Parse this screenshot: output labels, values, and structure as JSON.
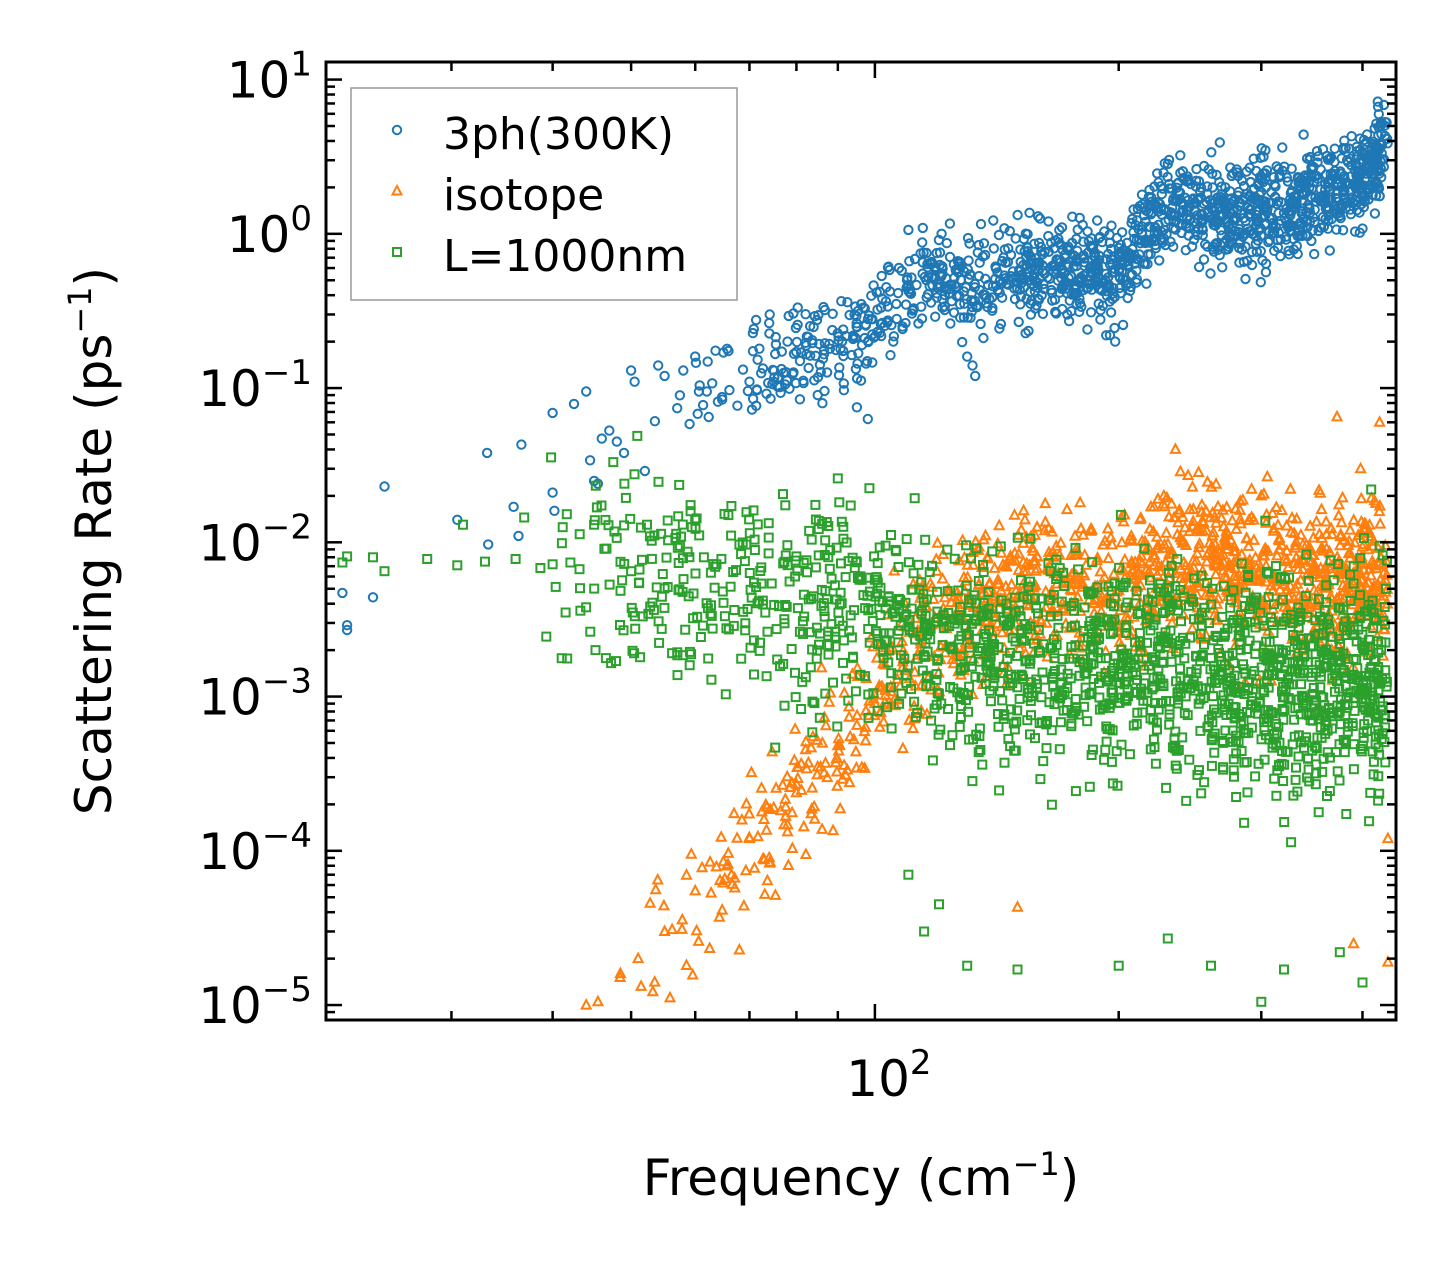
{
  "chart_data": {
    "type": "scatter",
    "title": "",
    "xlabel": "Frequency (cm",
    "xlabel_sup": "−1",
    "xlabel_end": ")",
    "ylabel": "Scattering Rate (ps",
    "ylabel_sup": "−1",
    "ylabel_end": ")",
    "xscale": "log",
    "yscale": "log",
    "xlim": [
      21,
      440
    ],
    "ylim": [
      8e-06,
      13
    ],
    "x_ticks": [
      {
        "value": 100,
        "base": "10",
        "exp": "2"
      }
    ],
    "y_ticks": [
      {
        "value": 10,
        "base": "10",
        "exp": "1"
      },
      {
        "value": 1,
        "base": "10",
        "exp": "0"
      },
      {
        "value": 0.1,
        "base": "10",
        "exp": "−1"
      },
      {
        "value": 0.01,
        "base": "10",
        "exp": "−2"
      },
      {
        "value": 0.001,
        "base": "10",
        "exp": "−3"
      },
      {
        "value": 0.0001,
        "base": "10",
        "exp": "−4"
      },
      {
        "value": 1e-05,
        "base": "10",
        "exp": "−5"
      }
    ],
    "legend_position": "top-left",
    "series": [
      {
        "name": "3ph(300K)",
        "marker": "circle",
        "color": "#1f77b4",
        "points": [
          [
            22.0,
            0.0047
          ],
          [
            22.3,
            0.0029
          ],
          [
            22.3,
            0.0027
          ],
          [
            24.0,
            0.0044
          ],
          [
            24.8,
            0.023
          ],
          [
            30.5,
            0.014
          ],
          [
            33.2,
            0.038
          ],
          [
            33.3,
            0.0097
          ],
          [
            35.8,
            0.017
          ],
          [
            36.3,
            0.011
          ],
          [
            36.6,
            0.043
          ],
          [
            40.0,
            0.021
          ],
          [
            40.2,
            0.016
          ],
          [
            40.0,
            0.069
          ],
          [
            42.5,
            0.079
          ],
          [
            44.0,
            0.095
          ],
          [
            44.5,
            0.034
          ],
          [
            45.0,
            0.025
          ],
          [
            45.5,
            0.024
          ],
          [
            46.0,
            0.047
          ],
          [
            47.0,
            0.053
          ],
          [
            48.0,
            0.045
          ],
          [
            49.0,
            0.038
          ],
          [
            50.0,
            0.13
          ],
          [
            50.5,
            0.11
          ],
          [
            52.0,
            0.029
          ],
          [
            53.5,
            0.061
          ],
          [
            54.0,
            0.14
          ],
          [
            55.0,
            0.12
          ],
          [
            57.0,
            0.074
          ],
          [
            58.0,
            0.13
          ],
          [
            60.0,
            0.16
          ],
          [
            62.0,
            0.095
          ],
          [
            65.0,
            0.17
          ],
          [
            70.0,
            0.11
          ],
          [
            72.0,
            0.18
          ],
          [
            78.0,
            0.2
          ],
          [
            85.0,
            0.09
          ],
          [
            88.0,
            0.18
          ],
          [
            95.0,
            0.075
          ],
          [
            98.0,
            0.063
          ],
          [
            130.0,
            0.16
          ],
          [
            132.0,
            0.14
          ],
          [
            133.0,
            0.12
          ],
          [
            193.0,
            0.22
          ],
          [
            198.0,
            0.2
          ]
        ],
        "trend": [
          [
            55,
            0.08
          ],
          [
            80,
            0.15
          ],
          [
            100,
            0.25
          ],
          [
            115,
            0.6
          ],
          [
            130,
            0.45
          ],
          [
            160,
            0.6
          ],
          [
            200,
            0.55
          ],
          [
            230,
            1.5
          ],
          [
            280,
            1.3
          ],
          [
            350,
            1.7
          ],
          [
            400,
            2.2
          ],
          [
            430,
            4.0
          ]
        ],
        "spread_dex": 0.22,
        "dense_xrange": [
          55,
          430
        ],
        "dense_count": 1500
      },
      {
        "name": "isotope",
        "marker": "triangle",
        "color": "#ff7f0e",
        "points": [
          [
            44.0,
            1e-05
          ],
          [
            45.5,
            1.05e-05
          ],
          [
            48.5,
            1.6e-05
          ],
          [
            51.0,
            2e-05
          ],
          [
            55.0,
            3e-05
          ],
          [
            60.0,
            5.5e-05
          ],
          [
            65.0,
            8.5e-05
          ],
          [
            70.0,
            0.00012
          ],
          [
            75.0,
            0.00019
          ],
          [
            80.0,
            0.00027
          ],
          [
            85.0,
            0.00035
          ],
          [
            90.0,
            0.00048
          ],
          [
            95.0,
            0.00065
          ],
          [
            100.0,
            0.0009
          ],
          [
            150.0,
            4.3e-05
          ],
          [
            235.0,
            0.04
          ],
          [
            300.0,
            0.02
          ],
          [
            372.0,
            0.065
          ],
          [
            420.0,
            0.06
          ],
          [
            430.0,
            1.9e-05
          ],
          [
            430.0,
            0.00012
          ],
          [
            390.0,
            2.5e-05
          ]
        ],
        "trend": [
          [
            45,
            1.2e-05
          ],
          [
            60,
            5e-05
          ],
          [
            80,
            0.00025
          ],
          [
            100,
            0.001
          ],
          [
            120,
            0.003
          ],
          [
            150,
            0.005
          ],
          [
            200,
            0.005
          ],
          [
            240,
            0.008
          ],
          [
            300,
            0.006
          ],
          [
            370,
            0.005
          ],
          [
            400,
            0.006
          ],
          [
            430,
            0.005
          ]
        ],
        "spread_dex": 0.35,
        "dense_xrange": [
          48,
          430
        ],
        "dense_count": 1300
      },
      {
        "name": "L=1000nm",
        "marker": "square",
        "color": "#2ca02c",
        "points": [
          [
            22.0,
            0.0074
          ],
          [
            22.3,
            0.0081
          ],
          [
            24.0,
            0.008
          ],
          [
            24.8,
            0.0065
          ],
          [
            28.0,
            0.0078
          ],
          [
            30.5,
            0.0071
          ],
          [
            31.0,
            0.013
          ],
          [
            33.0,
            0.0075
          ],
          [
            36.0,
            0.0078
          ],
          [
            40.0,
            0.0072
          ],
          [
            45.0,
            0.013
          ],
          [
            50.0,
            0.0065
          ],
          [
            60.0,
            0.014
          ],
          [
            110.0,
            7e-05
          ],
          [
            115.0,
            3e-05
          ],
          [
            120.0,
            4.5e-05
          ],
          [
            130.0,
            1.8e-05
          ],
          [
            150.0,
            1.7e-05
          ],
          [
            200.0,
            1.8e-05
          ],
          [
            230.0,
            2.7e-05
          ],
          [
            260.0,
            1.8e-05
          ],
          [
            300.0,
            1.05e-05
          ],
          [
            320.0,
            1.7e-05
          ],
          [
            400.0,
            1.4e-05
          ],
          [
            375.0,
            2.2e-05
          ],
          [
            410.0,
            0.022
          ],
          [
            420.0,
            0.0095
          ]
        ],
        "trend": [
          [
            30,
            0.008
          ],
          [
            60,
            0.0065
          ],
          [
            100,
            0.004
          ],
          [
            120,
            0.002
          ],
          [
            200,
            0.0015
          ],
          [
            300,
            0.0012
          ],
          [
            400,
            0.0012
          ],
          [
            430,
            0.0015
          ]
        ],
        "spread_dex": 0.5,
        "dense_xrange": [
          36,
          430
        ],
        "dense_count": 1700
      }
    ]
  }
}
